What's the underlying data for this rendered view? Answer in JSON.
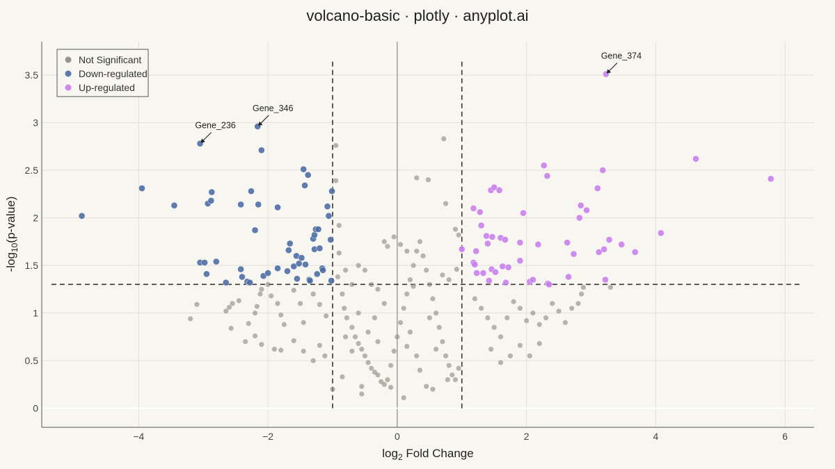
{
  "chart_data": {
    "type": "scatter",
    "title": "volcano-basic · plotly · anyplot.ai",
    "xlabel_main": "log",
    "xlabel_sub": "2",
    "xlabel_rest": " Fold Change",
    "ylabel_main": "-log",
    "ylabel_sub": "10",
    "ylabel_rest": "(p-value)",
    "xlim": [
      -5.5,
      6.45
    ],
    "ylim": [
      -0.2,
      3.85
    ],
    "x_ticks": [
      -4,
      -2,
      0,
      2,
      4,
      6
    ],
    "x_tick_labels": [
      "−4",
      "−2",
      "0",
      "2",
      "4",
      "6"
    ],
    "y_ticks": [
      0,
      0.5,
      1,
      1.5,
      2,
      2.5,
      3,
      3.5
    ],
    "y_tick_labels": [
      "0",
      "0.5",
      "1",
      "1.5",
      "2",
      "2.5",
      "3",
      "3.5"
    ],
    "grid": true,
    "legend_position": "top-left",
    "thresholds": {
      "fold_change": [
        -1,
        1
      ],
      "neg_log10_p": 1.301
    },
    "colors": {
      "background": "#F8F6F0",
      "not_significant": "#8C8B80",
      "down": "#4A6BA3",
      "up": "#C77EEC",
      "grid": "#E3E0D8",
      "axis": "#555555",
      "threshold": "#333333"
    },
    "series": [
      {
        "name": "Not Significant",
        "color_key": "not_significant",
        "points": [
          [
            -3.2,
            0.94
          ],
          [
            -3.1,
            1.09
          ],
          [
            -2.65,
            1.02
          ],
          [
            -2.6,
            1.06
          ],
          [
            -2.57,
            0.84
          ],
          [
            -2.55,
            1.1
          ],
          [
            -2.45,
            1.13
          ],
          [
            -2.3,
            0.89
          ],
          [
            -2.2,
            1.0
          ],
          [
            -2.17,
            1.07
          ],
          [
            -2.12,
            1.2
          ],
          [
            -2.1,
            1.25
          ],
          [
            -2.0,
            1.3
          ],
          [
            -1.95,
            1.18
          ],
          [
            -1.85,
            1.1
          ],
          [
            -1.8,
            0.98
          ],
          [
            -1.75,
            0.88
          ],
          [
            -1.6,
            1.24
          ],
          [
            -1.5,
            1.1
          ],
          [
            -1.45,
            0.9
          ],
          [
            -1.3,
            1.2
          ],
          [
            -1.2,
            1.09
          ],
          [
            -1.1,
            0.97
          ],
          [
            -2.35,
            0.7
          ],
          [
            -2.2,
            0.76
          ],
          [
            -2.1,
            0.67
          ],
          [
            -1.9,
            0.62
          ],
          [
            -1.8,
            0.61
          ],
          [
            -1.6,
            0.71
          ],
          [
            -1.45,
            0.6
          ],
          [
            -1.3,
            0.5
          ],
          [
            -1.2,
            0.66
          ],
          [
            -1.12,
            0.55
          ],
          [
            -0.95,
            2.76
          ],
          [
            -0.95,
            2.39
          ],
          [
            -0.9,
            1.92
          ],
          [
            -0.9,
            1.63
          ],
          [
            -0.92,
            1.38
          ],
          [
            -0.85,
            1.2
          ],
          [
            -0.82,
            1.05
          ],
          [
            -0.78,
            0.95
          ],
          [
            -0.7,
            0.85
          ],
          [
            -0.65,
            0.75
          ],
          [
            -0.6,
            0.68
          ],
          [
            -0.55,
            0.62
          ],
          [
            -0.5,
            0.55
          ],
          [
            -0.45,
            0.48
          ],
          [
            -0.4,
            0.42
          ],
          [
            -0.35,
            0.38
          ],
          [
            -0.3,
            0.35
          ],
          [
            -0.25,
            0.28
          ],
          [
            -0.2,
            0.25
          ],
          [
            -0.15,
            0.3
          ],
          [
            -0.1,
            0.45
          ],
          [
            -0.05,
            0.6
          ],
          [
            0.0,
            0.75
          ],
          [
            0.05,
            0.9
          ],
          [
            0.1,
            1.05
          ],
          [
            0.15,
            1.2
          ],
          [
            0.2,
            1.35
          ],
          [
            0.25,
            1.5
          ],
          [
            0.3,
            1.65
          ],
          [
            0.35,
            1.75
          ],
          [
            0.4,
            1.6
          ],
          [
            0.45,
            1.45
          ],
          [
            0.5,
            1.3
          ],
          [
            0.55,
            1.15
          ],
          [
            0.6,
            1.0
          ],
          [
            0.65,
            0.85
          ],
          [
            0.7,
            0.7
          ],
          [
            0.75,
            0.55
          ],
          [
            0.8,
            0.45
          ],
          [
            0.85,
            0.35
          ],
          [
            0.9,
            0.3
          ],
          [
            -0.2,
            1.75
          ],
          [
            -0.15,
            1.7
          ],
          [
            -0.05,
            1.8
          ],
          [
            0.05,
            1.72
          ],
          [
            0.15,
            1.65
          ],
          [
            0.3,
            2.42
          ],
          [
            0.48,
            2.4
          ],
          [
            0.72,
            2.83
          ],
          [
            0.75,
            2.15
          ],
          [
            0.9,
            1.88
          ],
          [
            0.95,
            1.82
          ],
          [
            0.92,
            1.46
          ],
          [
            0.8,
            1.35
          ],
          [
            0.7,
            1.4
          ],
          [
            -0.6,
            1.5
          ],
          [
            -0.5,
            1.45
          ],
          [
            -0.4,
            1.3
          ],
          [
            -0.3,
            1.25
          ],
          [
            -0.7,
            1.3
          ],
          [
            -0.8,
            1.45
          ],
          [
            1.2,
            1.15
          ],
          [
            1.3,
            1.05
          ],
          [
            1.4,
            0.95
          ],
          [
            1.5,
            0.85
          ],
          [
            1.6,
            0.75
          ],
          [
            1.7,
            0.95
          ],
          [
            1.8,
            1.12
          ],
          [
            1.9,
            1.05
          ],
          [
            2.0,
            0.92
          ],
          [
            2.1,
            1.0
          ],
          [
            2.2,
            0.88
          ],
          [
            2.3,
            0.95
          ],
          [
            2.4,
            1.1
          ],
          [
            2.5,
            1.02
          ],
          [
            2.6,
            0.9
          ],
          [
            2.7,
            1.05
          ],
          [
            2.8,
            1.1
          ],
          [
            2.85,
            1.2
          ],
          [
            2.88,
            1.27
          ],
          [
            1.45,
            0.62
          ],
          [
            1.6,
            0.48
          ],
          [
            1.75,
            0.55
          ],
          [
            1.9,
            0.66
          ],
          [
            2.05,
            0.55
          ],
          [
            2.2,
            0.68
          ],
          [
            3.3,
            1.27
          ],
          [
            -1.0,
            0.2
          ],
          [
            -0.85,
            0.33
          ],
          [
            -0.55,
            0.23
          ],
          [
            0.1,
            0.11
          ],
          [
            0.45,
            0.23
          ],
          [
            0.78,
            0.3
          ],
          [
            0.95,
            0.42
          ],
          [
            -0.7,
            0.6
          ],
          [
            -0.3,
            0.7
          ],
          [
            0.2,
            0.8
          ],
          [
            0.5,
            0.95
          ],
          [
            -0.6,
            1.0
          ],
          [
            -0.35,
            0.95
          ],
          [
            0.3,
            0.55
          ],
          [
            0.6,
            0.62
          ],
          [
            -0.1,
            0.22
          ],
          [
            0.35,
            0.4
          ],
          [
            -0.45,
            0.8
          ],
          [
            -0.2,
            1.1
          ],
          [
            0.25,
            1.28
          ],
          [
            -0.8,
            0.75
          ],
          [
            0.15,
            0.65
          ],
          [
            -0.55,
            0.15
          ],
          [
            0.55,
            0.2
          ]
        ]
      },
      {
        "name": "Down-regulated",
        "color_key": "down",
        "points": [
          [
            -4.88,
            2.02
          ],
          [
            -3.95,
            2.31
          ],
          [
            -3.45,
            2.13
          ],
          [
            -3.05,
            2.78
          ],
          [
            -3.05,
            1.53
          ],
          [
            -2.98,
            1.53
          ],
          [
            -2.95,
            1.41
          ],
          [
            -2.93,
            2.15
          ],
          [
            -2.88,
            2.18
          ],
          [
            -2.87,
            2.27
          ],
          [
            -2.8,
            1.54
          ],
          [
            -2.65,
            1.32
          ],
          [
            -2.42,
            2.14
          ],
          [
            -2.42,
            1.46
          ],
          [
            -2.4,
            1.38
          ],
          [
            -2.32,
            1.33
          ],
          [
            -2.28,
            1.32
          ],
          [
            -2.26,
            2.28
          ],
          [
            -2.2,
            1.87
          ],
          [
            -2.16,
            2.96
          ],
          [
            -2.15,
            2.14
          ],
          [
            -2.1,
            2.71
          ],
          [
            -2.07,
            1.39
          ],
          [
            -2.0,
            1.42
          ],
          [
            -1.85,
            2.11
          ],
          [
            -1.85,
            1.47
          ],
          [
            -1.7,
            1.44
          ],
          [
            -1.68,
            1.66
          ],
          [
            -1.66,
            1.73
          ],
          [
            -1.6,
            1.49
          ],
          [
            -1.56,
            1.6
          ],
          [
            -1.55,
            1.36
          ],
          [
            -1.52,
            1.52
          ],
          [
            -1.48,
            1.58
          ],
          [
            -1.45,
            2.51
          ],
          [
            -1.43,
            2.34
          ],
          [
            -1.42,
            1.51
          ],
          [
            -1.38,
            2.45
          ],
          [
            -1.36,
            1.35
          ],
          [
            -1.35,
            1.34
          ],
          [
            -1.3,
            1.78
          ],
          [
            -1.28,
            1.82
          ],
          [
            -1.28,
            1.67
          ],
          [
            -1.26,
            1.88
          ],
          [
            -1.24,
            1.41
          ],
          [
            -1.22,
            1.88
          ],
          [
            -1.2,
            1.68
          ],
          [
            -1.16,
            1.47
          ],
          [
            -1.15,
            1.45
          ],
          [
            -1.08,
            2.12
          ],
          [
            -1.06,
            2.02
          ],
          [
            -1.03,
            1.77
          ],
          [
            -1.02,
            1.34
          ],
          [
            -1.01,
            2.28
          ]
        ]
      },
      {
        "name": "Up-regulated",
        "color_key": "up",
        "points": [
          [
            1.0,
            1.67
          ],
          [
            1.18,
            2.1
          ],
          [
            1.18,
            1.53
          ],
          [
            1.2,
            1.51
          ],
          [
            1.22,
            1.65
          ],
          [
            1.23,
            1.42
          ],
          [
            1.28,
            2.06
          ],
          [
            1.3,
            1.92
          ],
          [
            1.33,
            1.42
          ],
          [
            1.38,
            1.81
          ],
          [
            1.4,
            1.73
          ],
          [
            1.42,
            1.34
          ],
          [
            1.45,
            2.29
          ],
          [
            1.46,
            1.46
          ],
          [
            1.47,
            1.8
          ],
          [
            1.5,
            2.32
          ],
          [
            1.52,
            1.43
          ],
          [
            1.58,
            2.29
          ],
          [
            1.6,
            1.79
          ],
          [
            1.63,
            1.49
          ],
          [
            1.67,
            1.77
          ],
          [
            1.68,
            1.32
          ],
          [
            1.72,
            1.48
          ],
          [
            1.9,
            1.74
          ],
          [
            1.9,
            1.55
          ],
          [
            1.95,
            2.05
          ],
          [
            2.05,
            1.33
          ],
          [
            2.1,
            1.35
          ],
          [
            2.18,
            1.72
          ],
          [
            2.27,
            2.55
          ],
          [
            2.32,
            2.44
          ],
          [
            2.33,
            1.31
          ],
          [
            2.35,
            1.3
          ],
          [
            2.63,
            1.74
          ],
          [
            2.65,
            1.38
          ],
          [
            2.73,
            1.62
          ],
          [
            2.82,
            2.0
          ],
          [
            2.84,
            2.13
          ],
          [
            2.93,
            2.08
          ],
          [
            3.1,
            2.31
          ],
          [
            3.12,
            1.64
          ],
          [
            3.18,
            2.5
          ],
          [
            3.2,
            1.67
          ],
          [
            3.22,
            1.35
          ],
          [
            3.23,
            3.51
          ],
          [
            3.28,
            1.77
          ],
          [
            3.47,
            1.72
          ],
          [
            3.68,
            1.64
          ],
          [
            4.08,
            1.84
          ],
          [
            4.62,
            2.62
          ],
          [
            5.78,
            2.41
          ]
        ]
      }
    ],
    "annotations": [
      {
        "text": "Gene_236",
        "x": -3.05,
        "y": 2.78
      },
      {
        "text": "Gene_346",
        "x": -2.16,
        "y": 2.96
      },
      {
        "text": "Gene_374",
        "x": 3.23,
        "y": 3.51
      }
    ]
  }
}
